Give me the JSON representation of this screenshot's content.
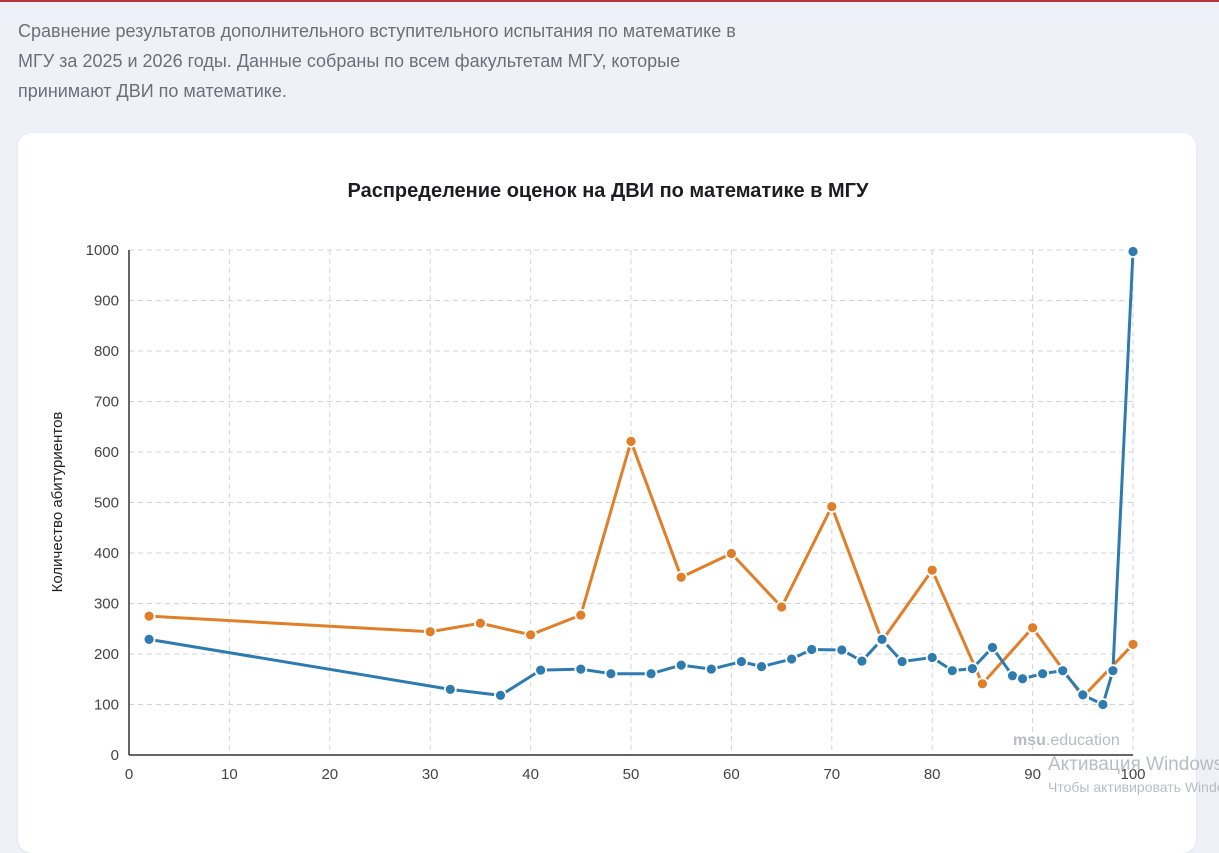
{
  "intro_text": "Сравнение результатов дополнительного вступительного испытания по математике в МГУ за 2025 и 2026 годы. Данные собраны по всем факультетам МГУ, которые принимают ДВИ по математике.",
  "watermark": {
    "bold": "msu",
    "rest": ".education"
  },
  "windows_activation": {
    "line1": "Активация Windows",
    "line2": "Чтобы активировать Windows"
  },
  "colors": {
    "orange": "#e07f2a",
    "blue": "#2e7bb0",
    "grid": "#d3d3d3",
    "axis": "#333333"
  },
  "chart_data": {
    "type": "line",
    "title": "Распределение оценок на ДВИ по математике в МГУ",
    "xlabel": "",
    "ylabel": "Количество абитуриентов",
    "xlim": [
      0,
      100
    ],
    "ylim": [
      0,
      1000
    ],
    "x_ticks": [
      0,
      10,
      20,
      30,
      40,
      50,
      60,
      70,
      80,
      90,
      100
    ],
    "y_ticks": [
      0,
      100,
      200,
      300,
      400,
      500,
      600,
      700,
      800,
      900,
      1000
    ],
    "grid": true,
    "series": [
      {
        "color": "#e07f2a",
        "points": [
          [
            2,
            275
          ],
          [
            30,
            244
          ],
          [
            35,
            261
          ],
          [
            40,
            238
          ],
          [
            45,
            277
          ],
          [
            50,
            621
          ],
          [
            55,
            352
          ],
          [
            60,
            399
          ],
          [
            65,
            293
          ],
          [
            70,
            492
          ],
          [
            75,
            226
          ],
          [
            80,
            366
          ],
          [
            85,
            141
          ],
          [
            90,
            252
          ],
          [
            95,
            115
          ],
          [
            100,
            219
          ]
        ]
      },
      {
        "color": "#2e7bb0",
        "points": [
          [
            2,
            229
          ],
          [
            32,
            130
          ],
          [
            37,
            118
          ],
          [
            41,
            168
          ],
          [
            45,
            170
          ],
          [
            48,
            161
          ],
          [
            52,
            161
          ],
          [
            55,
            178
          ],
          [
            58,
            170
          ],
          [
            61,
            185
          ],
          [
            63,
            175
          ],
          [
            66,
            190
          ],
          [
            68,
            209
          ],
          [
            71,
            208
          ],
          [
            73,
            186
          ],
          [
            75,
            229
          ],
          [
            77,
            185
          ],
          [
            80,
            193
          ],
          [
            82,
            167
          ],
          [
            84,
            171
          ],
          [
            86,
            213
          ],
          [
            88,
            157
          ],
          [
            89,
            151
          ],
          [
            91,
            161
          ],
          [
            93,
            167
          ],
          [
            95,
            119
          ],
          [
            97,
            100
          ],
          [
            98,
            167
          ],
          [
            100,
            997
          ]
        ]
      }
    ]
  }
}
